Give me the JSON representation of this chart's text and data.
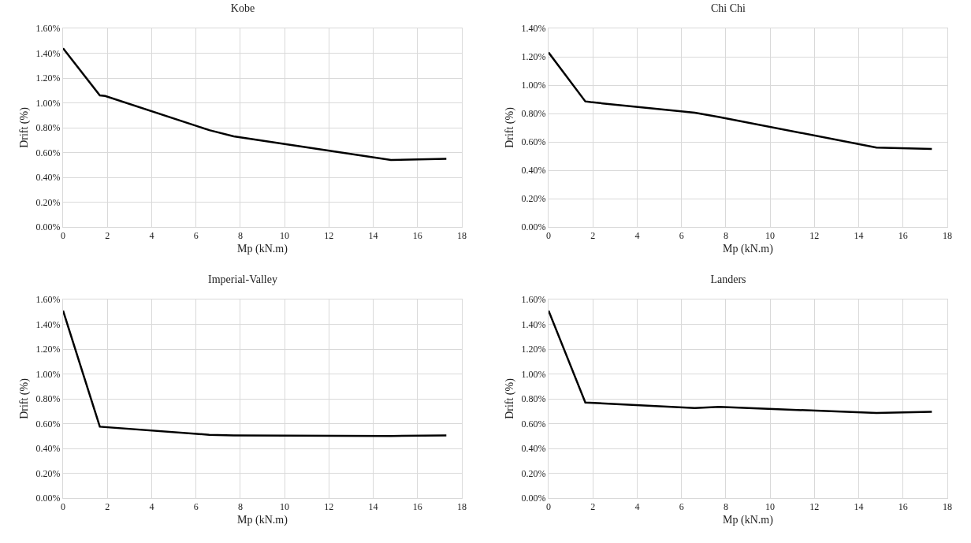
{
  "chart_data": [
    {
      "type": "line",
      "title": "Kobe",
      "xlabel": "Mp (kN.m)",
      "ylabel": "Drift (%)",
      "x": [
        0,
        1.66,
        1.9,
        6.6,
        7.7,
        14.8,
        17.3
      ],
      "series": [
        {
          "color": "#000000",
          "values": [
            1.44,
            1.06,
            1.055,
            0.78,
            0.73,
            0.54,
            0.55
          ]
        }
      ],
      "xlim": [
        0,
        18
      ],
      "xticks": [
        0,
        2,
        4,
        6,
        8,
        10,
        12,
        14,
        16,
        18
      ],
      "ylim": [
        0,
        1.6
      ],
      "yticks": [
        {
          "value": 0,
          "label": "0.00%"
        },
        {
          "value": 0.2,
          "label": "0.20%"
        },
        {
          "value": 0.4,
          "label": "0.40%"
        },
        {
          "value": 0.6,
          "label": "0.60%"
        },
        {
          "value": 0.8,
          "label": "0.80%"
        },
        {
          "value": 1,
          "label": "1.00%"
        },
        {
          "value": 1.2,
          "label": "1.20%"
        },
        {
          "value": 1.4,
          "label": "1.40%"
        },
        {
          "value": 1.6,
          "label": "1.60%"
        }
      ],
      "grid": true,
      "marker": "none",
      "line_style": "solid"
    },
    {
      "type": "line",
      "title": "Chi Chi",
      "xlabel": "Mp (kN.m)",
      "ylabel": "Drift (%)",
      "x": [
        0,
        1.66,
        1.9,
        6.6,
        7.7,
        14.8,
        17.3
      ],
      "series": [
        {
          "color": "#000000",
          "values": [
            1.23,
            0.885,
            0.88,
            0.805,
            0.775,
            0.56,
            0.55
          ]
        }
      ],
      "xlim": [
        0,
        18
      ],
      "xticks": [
        0,
        2,
        4,
        6,
        8,
        10,
        12,
        14,
        16,
        18
      ],
      "ylim": [
        0,
        1.4
      ],
      "yticks": [
        {
          "value": 0,
          "label": "0.00%"
        },
        {
          "value": 0.2,
          "label": "0.20%"
        },
        {
          "value": 0.4,
          "label": "0.40%"
        },
        {
          "value": 0.6,
          "label": "0.60%"
        },
        {
          "value": 0.8,
          "label": "0.80%"
        },
        {
          "value": 1,
          "label": "1.00%"
        },
        {
          "value": 1.2,
          "label": "1.20%"
        },
        {
          "value": 1.4,
          "label": "1.40%"
        }
      ],
      "grid": true,
      "marker": "none",
      "line_style": "solid"
    },
    {
      "type": "line",
      "title": "Imperial-Valley",
      "xlabel": "Mp (kN.m)",
      "ylabel": "Drift (%)",
      "x": [
        0,
        1.66,
        6.6,
        7.7,
        14.8,
        17.3
      ],
      "series": [
        {
          "color": "#000000",
          "values": [
            1.51,
            0.575,
            0.51,
            0.505,
            0.5,
            0.505
          ]
        }
      ],
      "xlim": [
        0,
        18
      ],
      "xticks": [
        0,
        2,
        4,
        6,
        8,
        10,
        12,
        14,
        16,
        18
      ],
      "ylim": [
        0,
        1.6
      ],
      "yticks": [
        {
          "value": 0,
          "label": "0.00%"
        },
        {
          "value": 0.2,
          "label": "0.20%"
        },
        {
          "value": 0.4,
          "label": "0.40%"
        },
        {
          "value": 0.6,
          "label": "0.60%"
        },
        {
          "value": 0.8,
          "label": "0.80%"
        },
        {
          "value": 1,
          "label": "1.00%"
        },
        {
          "value": 1.2,
          "label": "1.20%"
        },
        {
          "value": 1.4,
          "label": "1.40%"
        },
        {
          "value": 1.6,
          "label": "1.60%"
        }
      ],
      "grid": true,
      "marker": "none",
      "line_style": "solid"
    },
    {
      "type": "line",
      "title": "Landers",
      "xlabel": "Mp (kN.m)",
      "ylabel": "Drift (%)",
      "x": [
        0,
        1.66,
        6.6,
        7.7,
        14.8,
        17.3
      ],
      "series": [
        {
          "color": "#000000",
          "values": [
            1.51,
            0.77,
            0.725,
            0.735,
            0.685,
            0.695
          ]
        }
      ],
      "xlim": [
        0,
        18
      ],
      "xticks": [
        0,
        2,
        4,
        6,
        8,
        10,
        12,
        14,
        16,
        18
      ],
      "ylim": [
        0,
        1.6
      ],
      "yticks": [
        {
          "value": 0,
          "label": "0.00%"
        },
        {
          "value": 0.2,
          "label": "0.20%"
        },
        {
          "value": 0.4,
          "label": "0.40%"
        },
        {
          "value": 0.6,
          "label": "0.60%"
        },
        {
          "value": 0.8,
          "label": "0.80%"
        },
        {
          "value": 1,
          "label": "1.00%"
        },
        {
          "value": 1.2,
          "label": "1.20%"
        },
        {
          "value": 1.4,
          "label": "1.40%"
        },
        {
          "value": 1.6,
          "label": "1.60%"
        }
      ],
      "grid": true,
      "marker": "none",
      "line_style": "solid"
    }
  ]
}
